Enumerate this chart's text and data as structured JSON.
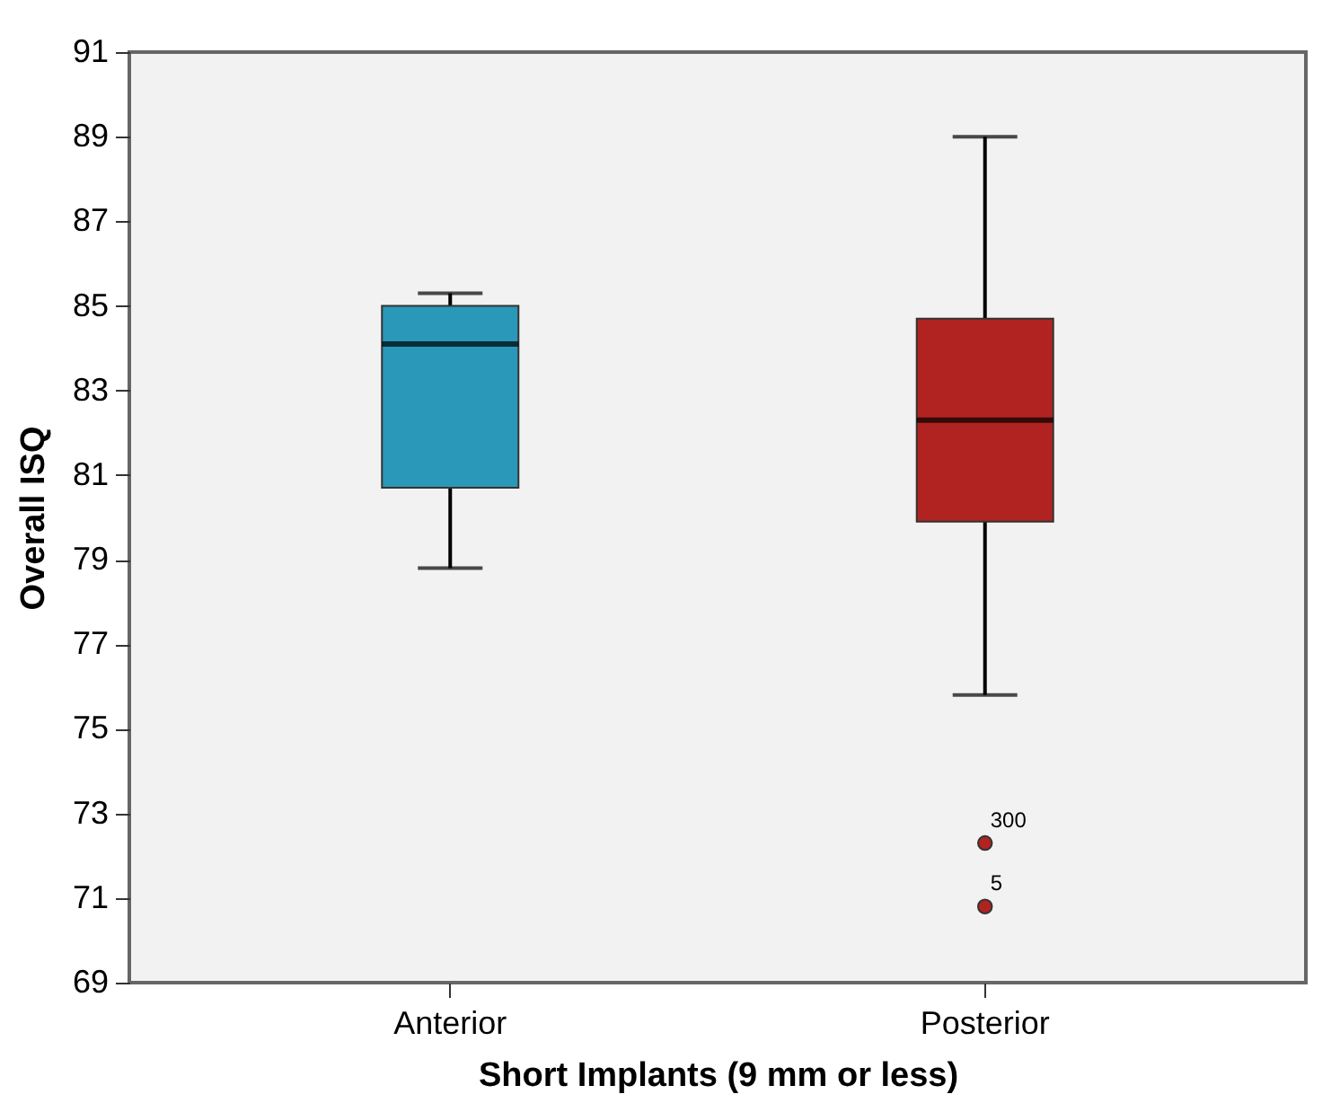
{
  "chart_data": {
    "type": "box",
    "xlabel": "Short Implants (9 mm or less)",
    "ylabel": "Overall ISQ",
    "categories": [
      "Anterior",
      "Posterior"
    ],
    "colors": [
      "#2a98b8",
      "#b02320"
    ],
    "boxes": [
      {
        "low": 78.8,
        "q1": 80.7,
        "median": 84.1,
        "q3": 85.0,
        "high": 85.3
      },
      {
        "low": 75.8,
        "q1": 79.9,
        "median": 82.3,
        "q3": 84.7,
        "high": 89.0,
        "outliers": [
          72.3,
          70.8
        ]
      }
    ],
    "ylim": [
      69,
      91
    ],
    "yticks": [
      69,
      71,
      73,
      75,
      77,
      79,
      81,
      83,
      85,
      87,
      89,
      91
    ],
    "annotations": [
      "300",
      "5"
    ],
    "grid": false
  }
}
